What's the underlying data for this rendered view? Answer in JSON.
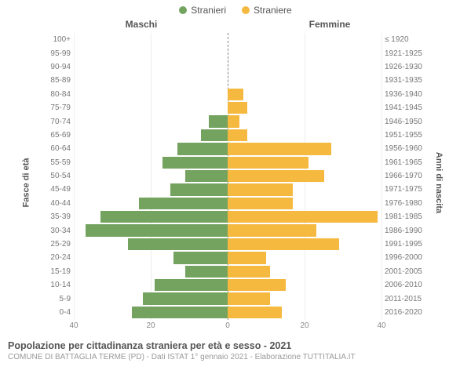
{
  "legend": {
    "male": {
      "label": "Stranieri",
      "color": "#74a360"
    },
    "female": {
      "label": "Straniere",
      "color": "#f5b940"
    }
  },
  "headers": {
    "left": "Maschi",
    "right": "Femmine"
  },
  "axis_labels": {
    "left": "Fasce di età",
    "right": "Anni di nascita"
  },
  "x_axis": {
    "max": 40,
    "ticks_left": [
      40,
      20,
      0
    ],
    "ticks_right": [
      0,
      20,
      40
    ]
  },
  "colors": {
    "male_bar": "#74a360",
    "female_bar": "#f5b940",
    "grid": "#eeeeee",
    "text": "#555555",
    "text_light": "#888888"
  },
  "rows": [
    {
      "age": "100+",
      "year": "≤ 1920",
      "m": 0,
      "f": 0
    },
    {
      "age": "95-99",
      "year": "1921-1925",
      "m": 0,
      "f": 0
    },
    {
      "age": "90-94",
      "year": "1926-1930",
      "m": 0,
      "f": 0
    },
    {
      "age": "85-89",
      "year": "1931-1935",
      "m": 0,
      "f": 0
    },
    {
      "age": "80-84",
      "year": "1936-1940",
      "m": 0,
      "f": 4
    },
    {
      "age": "75-79",
      "year": "1941-1945",
      "m": 0,
      "f": 5
    },
    {
      "age": "70-74",
      "year": "1946-1950",
      "m": 5,
      "f": 3
    },
    {
      "age": "65-69",
      "year": "1951-1955",
      "m": 7,
      "f": 5
    },
    {
      "age": "60-64",
      "year": "1956-1960",
      "m": 13,
      "f": 27
    },
    {
      "age": "55-59",
      "year": "1961-1965",
      "m": 17,
      "f": 21
    },
    {
      "age": "50-54",
      "year": "1966-1970",
      "m": 11,
      "f": 25
    },
    {
      "age": "45-49",
      "year": "1971-1975",
      "m": 15,
      "f": 17
    },
    {
      "age": "40-44",
      "year": "1976-1980",
      "m": 23,
      "f": 17
    },
    {
      "age": "35-39",
      "year": "1981-1985",
      "m": 33,
      "f": 39
    },
    {
      "age": "30-34",
      "year": "1986-1990",
      "m": 37,
      "f": 23
    },
    {
      "age": "25-29",
      "year": "1991-1995",
      "m": 26,
      "f": 29
    },
    {
      "age": "20-24",
      "year": "1996-2000",
      "m": 14,
      "f": 10
    },
    {
      "age": "15-19",
      "year": "2001-2005",
      "m": 11,
      "f": 11
    },
    {
      "age": "10-14",
      "year": "2006-2010",
      "m": 19,
      "f": 15
    },
    {
      "age": "5-9",
      "year": "2011-2015",
      "m": 22,
      "f": 11
    },
    {
      "age": "0-4",
      "year": "2016-2020",
      "m": 25,
      "f": 14
    }
  ],
  "footer": {
    "title": "Popolazione per cittadinanza straniera per età e sesso - 2021",
    "subtitle": "COMUNE DI BATTAGLIA TERME (PD) - Dati ISTAT 1° gennaio 2021 - Elaborazione TUTTITALIA.IT"
  }
}
